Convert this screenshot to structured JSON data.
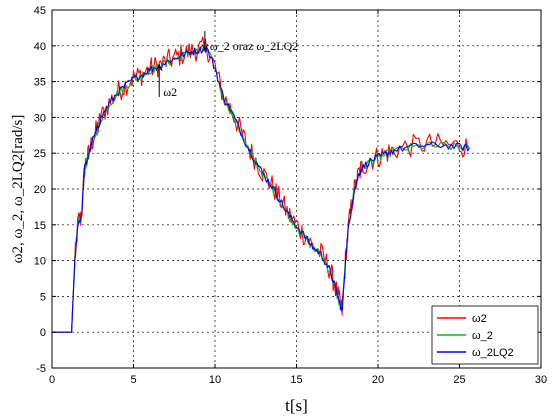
{
  "chart_data": {
    "type": "line",
    "title": "",
    "xlabel": "t[s]",
    "ylabel": "ω2, ω_2, ω_2LQ2[rad/s]",
    "xlim": [
      0,
      30
    ],
    "ylim": [
      -5,
      45
    ],
    "xticks": [
      0,
      5,
      10,
      15,
      20,
      25,
      30
    ],
    "yticks": [
      -5,
      0,
      5,
      10,
      15,
      20,
      25,
      30,
      35,
      40,
      45
    ],
    "grid": true,
    "legend_position": "bottom-right",
    "x": [
      0,
      1.2,
      1.4,
      1.6,
      1.8,
      2.0,
      2.2,
      2.5,
      2.8,
      3.0,
      3.5,
      4.0,
      4.5,
      5.0,
      5.5,
      6.0,
      6.5,
      7.0,
      7.5,
      8.0,
      8.5,
      9.0,
      9.5,
      10.0,
      10.5,
      11.0,
      11.5,
      12.0,
      12.5,
      13.0,
      13.5,
      14.0,
      14.5,
      15.0,
      15.5,
      16.0,
      16.5,
      17.0,
      17.3,
      17.6,
      17.8,
      18.0,
      18.2,
      18.5,
      18.8,
      19.0,
      19.5,
      20.0,
      20.5,
      21.0,
      22.0,
      23.0,
      24.0,
      25.0,
      25.6
    ],
    "series": [
      {
        "name": "ω2",
        "color": "#ff0000",
        "values": [
          0,
          0,
          10,
          15.5,
          16,
          23,
          24.5,
          27,
          28.5,
          30,
          32,
          33.5,
          34.5,
          35.5,
          36,
          36.8,
          37.2,
          37.8,
          38.3,
          38.8,
          39.2,
          39.5,
          39.8,
          37,
          33,
          31,
          28.5,
          26,
          24,
          22,
          20.5,
          18.5,
          16.5,
          15,
          13.5,
          12,
          11,
          9,
          7,
          4.5,
          3,
          10,
          15,
          19.5,
          22,
          23,
          24,
          24.5,
          25,
          25.5,
          26,
          26.3,
          26.2,
          26,
          25.8
        ],
        "noise": 1.6
      },
      {
        "name": "ω_2",
        "color": "#00c000",
        "values": [
          0,
          0,
          10,
          15.3,
          15.8,
          22.8,
          24.3,
          26.8,
          28.3,
          29.8,
          31.8,
          33.3,
          34.3,
          35.3,
          35.8,
          36.6,
          37,
          37.6,
          38.1,
          38.6,
          39,
          39.3,
          39.5,
          36.8,
          32.8,
          30.8,
          28.3,
          25.8,
          23.8,
          21.8,
          20.3,
          18.3,
          16.3,
          14.8,
          13.3,
          11.8,
          10.8,
          8.8,
          6.8,
          4.3,
          2.8,
          9.8,
          14.8,
          19.3,
          21.8,
          22.8,
          23.8,
          24.3,
          24.8,
          25.3,
          25.8,
          26,
          26,
          25.8,
          25.6
        ],
        "noise": 0.6
      },
      {
        "name": "ω_2LQ2",
        "color": "#0000ff",
        "values": [
          0,
          0,
          10,
          15.4,
          15.9,
          22.9,
          24.4,
          26.9,
          28.4,
          29.9,
          31.9,
          33.4,
          34.4,
          35.4,
          35.9,
          36.7,
          37.1,
          37.7,
          38.2,
          38.7,
          39.1,
          39.4,
          39.6,
          36.9,
          32.9,
          30.9,
          28.4,
          25.9,
          23.9,
          21.9,
          20.4,
          18.4,
          16.4,
          14.9,
          13.4,
          11.9,
          10.9,
          8.9,
          6.9,
          4.4,
          2.9,
          9.9,
          14.9,
          19.4,
          21.9,
          22.9,
          23.9,
          24.4,
          24.9,
          25.4,
          25.9,
          26.1,
          26.1,
          25.9,
          25.7
        ],
        "noise": 0.5
      }
    ],
    "annotations": [
      {
        "text": "ω_2 oraz ω_2LQ2",
        "x": 9.5,
        "y": 39.5
      },
      {
        "text": "ω2",
        "x": 6.7,
        "y": 37.5
      }
    ]
  }
}
